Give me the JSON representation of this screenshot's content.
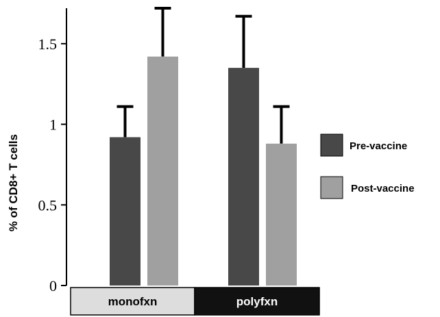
{
  "chart_data": {
    "type": "bar",
    "title": "",
    "xlabel": "",
    "ylabel": "% of CD8+ T cells",
    "ylim": [
      0,
      1.72
    ],
    "yticks": [
      {
        "value": 0,
        "label": "0"
      },
      {
        "value": 0.5,
        "label": "0.5"
      },
      {
        "value": 1,
        "label": "1"
      },
      {
        "value": 1.5,
        "label": "1.5"
      }
    ],
    "categories": [
      "monofxn",
      "polyfxn"
    ],
    "category_colors": [
      "#dddddd",
      "#111111"
    ],
    "category_text_colors": [
      "#000000",
      "#ffffff"
    ],
    "series": [
      {
        "name": "Pre-vaccine",
        "color": "#484848",
        "values": [
          0.92,
          1.35
        ],
        "errors": [
          0.19,
          0.32
        ]
      },
      {
        "name": "Post-vaccine",
        "color": "#a0a0a0",
        "values": [
          1.42,
          0.88
        ],
        "errors": [
          0.3,
          0.23
        ]
      }
    ],
    "grid": false,
    "legend": "right"
  }
}
